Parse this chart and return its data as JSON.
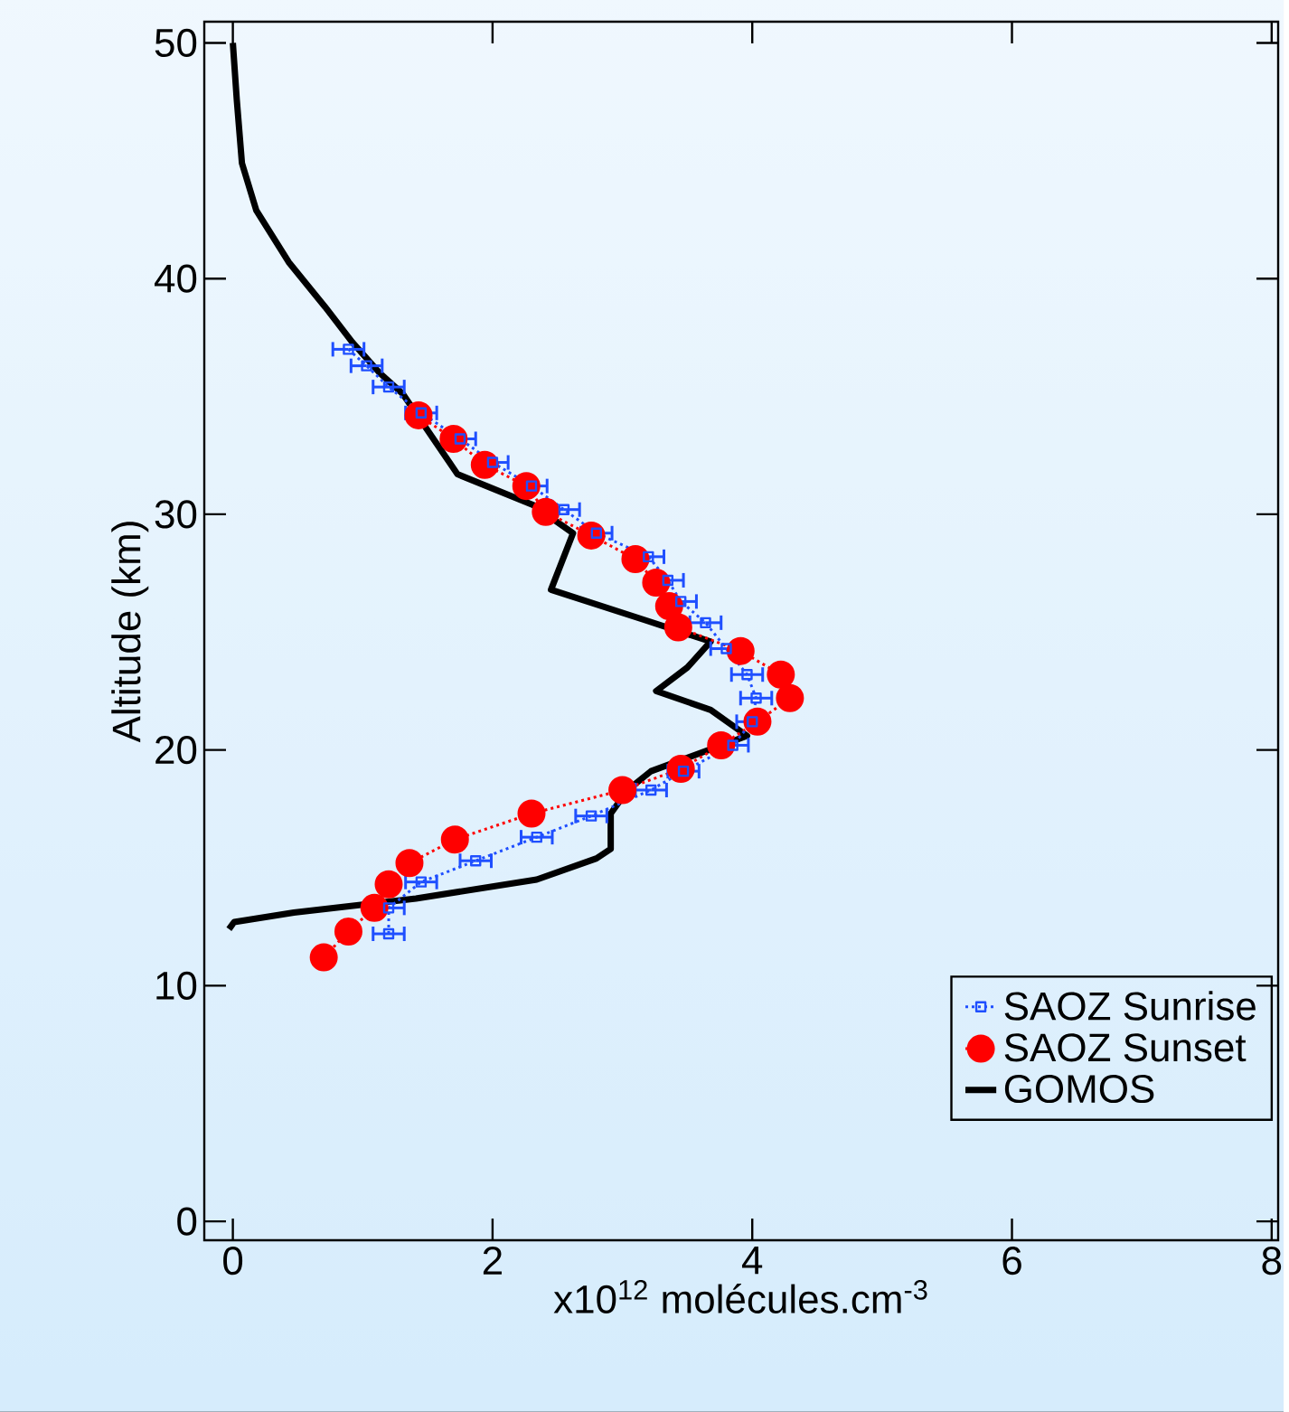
{
  "chart_data": {
    "type": "line",
    "xlabel": "x10$^{12}$ molécules.cm$^{-3}$",
    "ylabel": "Altitude (km)",
    "xlim": [
      -0.22,
      8.05
    ],
    "ylim": [
      -0.8,
      50.9
    ],
    "xticks": [
      0,
      2,
      4,
      6,
      8
    ],
    "yticks": [
      0,
      10,
      20,
      30,
      40,
      50
    ],
    "legend": "bottom right",
    "grid": false,
    "series": [
      {
        "name": "SAOZ Sunrise",
        "color": "#1f4fff",
        "marker": "square",
        "line_style": "dotted",
        "x": [
          0.89,
          1.03,
          1.2,
          1.45,
          1.75,
          2.0,
          2.3,
          2.55,
          2.8,
          3.2,
          3.35,
          3.45,
          3.64,
          3.8,
          3.96,
          4.03,
          4.0,
          3.85,
          3.47,
          3.22,
          2.76,
          2.34,
          1.87,
          1.45,
          1.2,
          1.2
        ],
        "values": [
          37,
          36.3,
          35.4,
          34.3,
          33.2,
          32.2,
          31.2,
          30.2,
          29.2,
          28.2,
          27.2,
          26.3,
          25.4,
          24.3,
          23.2,
          22.2,
          21.2,
          20.2,
          19.1,
          18.3,
          17.2,
          16.3,
          15.3,
          14.4,
          13.3,
          12.2
        ],
        "xerrors": [
          0.12,
          0.12,
          0.12,
          0.12,
          0.12,
          0.12,
          0.12,
          0.12,
          0.12,
          0.12,
          0.12,
          0.12,
          0.12,
          0.12,
          0.12,
          0.12,
          0.12,
          0.12,
          0.12,
          0.12,
          0.12,
          0.12,
          0.12,
          0.12,
          0.12,
          0.12
        ]
      },
      {
        "name": "SAOZ Sunset",
        "color": "#ff0000",
        "marker": "circle",
        "line_style": "dotted",
        "x": [
          1.43,
          1.7,
          1.94,
          2.26,
          2.41,
          2.76,
          3.1,
          3.26,
          3.36,
          3.43,
          3.91,
          4.22,
          4.29,
          4.04,
          3.76,
          3.45,
          3.0,
          2.3,
          1.71,
          1.36,
          1.2,
          1.09,
          0.89,
          0.7
        ],
        "values": [
          34.2,
          33.2,
          32.1,
          31.2,
          30.1,
          29.1,
          28.1,
          27.1,
          26.1,
          25.2,
          24.2,
          23.2,
          22.2,
          21.2,
          20.2,
          19.2,
          18.3,
          17.3,
          16.2,
          15.2,
          14.3,
          13.3,
          12.3,
          11.2
        ]
      },
      {
        "name": "GOMOS",
        "color": "#000000",
        "marker": "none",
        "line_style": "solid",
        "x": [
          0,
          0.03,
          0.07,
          0.18,
          0.43,
          0.71,
          0.92,
          1.13,
          1.31,
          1.73,
          2.31,
          2.62,
          2.45,
          3.18,
          3.68,
          3.5,
          3.26,
          3.68,
          3.96,
          3.22,
          3.04,
          2.91,
          2.91,
          2.8,
          2.34,
          1.41,
          0.47,
          0.01,
          -0.03
        ],
        "values": [
          50,
          47.6,
          44.9,
          42.9,
          40.7,
          38.8,
          37.3,
          36.0,
          35.1,
          31.7,
          30.4,
          29.2,
          26.8,
          25.5,
          24.6,
          23.5,
          22.5,
          21.7,
          20.6,
          19.1,
          18.3,
          17.3,
          15.8,
          15.4,
          14.5,
          13.7,
          13.1,
          12.7,
          12.4
        ]
      }
    ]
  }
}
